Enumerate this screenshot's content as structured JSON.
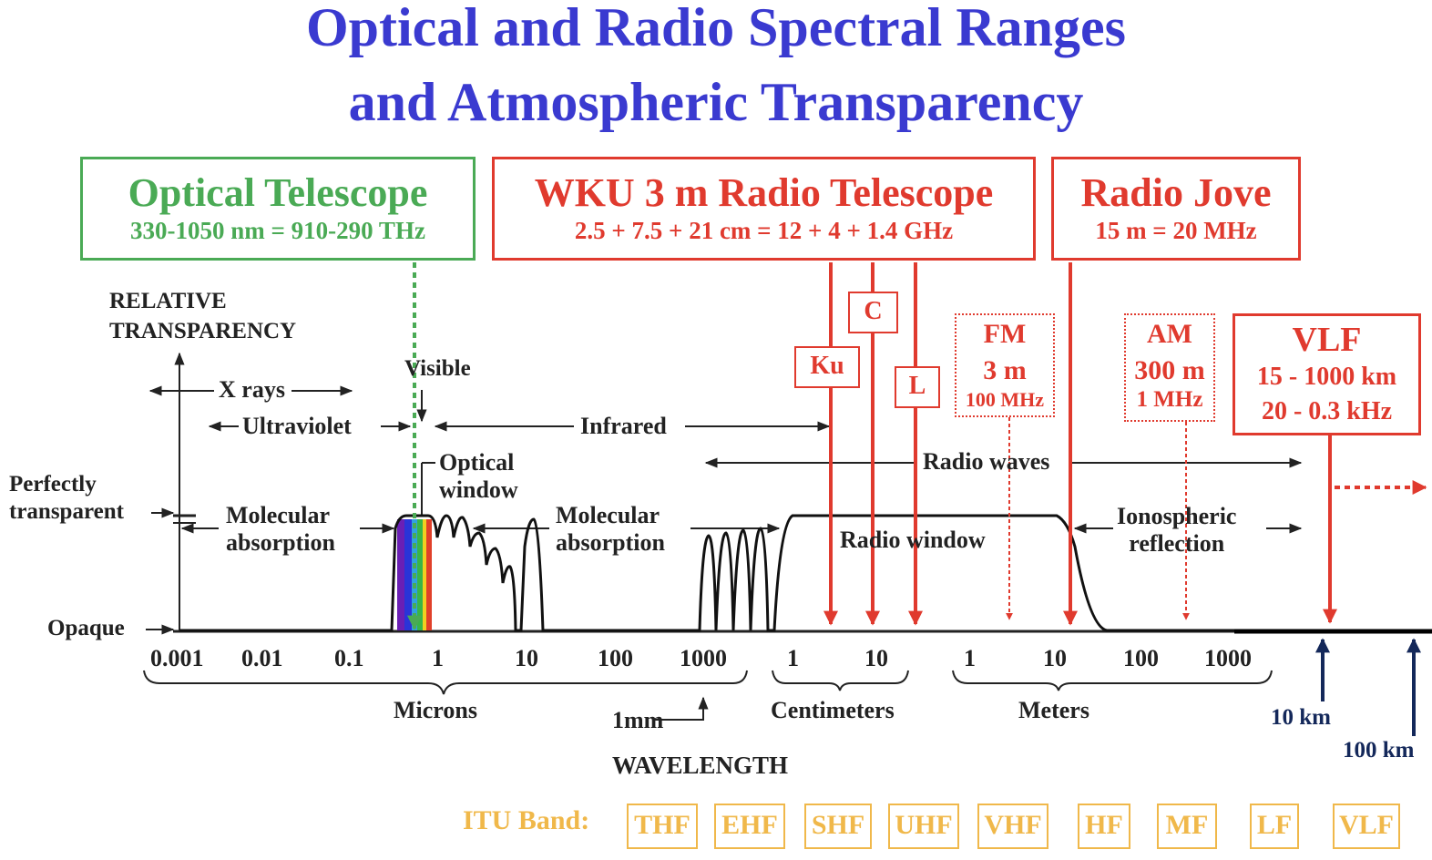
{
  "title": {
    "line1": "Optical and Radio Spectral Ranges",
    "line2": "and Atmospheric Transparency"
  },
  "telescopes": {
    "optical": {
      "name": "Optical Telescope",
      "range": "330-1050 nm  =  910-290 THz"
    },
    "wku": {
      "name": "WKU 3 m Radio Telescope",
      "range": "2.5 + 7.5 + 21 cm  =  12 + 4 + 1.4 GHz"
    },
    "jove": {
      "name": "Radio Jove",
      "range": "15 m  =  20 MHz"
    }
  },
  "bands": {
    "ku": "Ku",
    "c": "C",
    "l": "L"
  },
  "broadcast": {
    "fm": {
      "name": "FM",
      "wavelength": "3 m",
      "freq": "100 MHz"
    },
    "am": {
      "name": "AM",
      "wavelength": "300 m",
      "freq": "1 MHz"
    },
    "vlf": {
      "name": "VLF",
      "wavelength": "15 - 1000 km",
      "freq": "20 - 0.3 kHz"
    }
  },
  "diagram": {
    "ylabel_1": "RELATIVE",
    "ylabel_2": "TRANSPARENCY",
    "perfect_1": "Perfectly",
    "perfect_2": "transparent",
    "opaque": "Opaque",
    "xrays": "X rays",
    "visible": "Visible",
    "ultraviolet": "Ultraviolet",
    "infrared": "Infrared",
    "optical_window_1": "Optical",
    "optical_window_2": "window",
    "radio_waves": "Radio waves",
    "mol_abs_1": "Molecular",
    "mol_abs_2": "absorption",
    "radio_window": "Radio window",
    "iono_1": "Ionospheric",
    "iono_2": "reflection",
    "ticks": [
      "0.001",
      "0.01",
      "0.1",
      "1",
      "10",
      "100",
      "1000",
      "1",
      "10",
      "1",
      "10",
      "100",
      "1000"
    ],
    "microns": "Microns",
    "mm": "1mm",
    "centimeters": "Centimeters",
    "meters": "Meters",
    "xlabel": "WAVELENGTH",
    "km10": "10 km",
    "km100": "100 km"
  },
  "itu": {
    "label": "ITU Band:",
    "bands": [
      "THF",
      "EHF",
      "SHF",
      "UHF",
      "VHF",
      "HF",
      "MF",
      "LF",
      "VLF"
    ]
  },
  "colors": {
    "title": "#3a3ad0",
    "optical": "#4aaa55",
    "radio": "#e03a2e",
    "itu": "#f0b84a",
    "navy": "#14285a"
  }
}
